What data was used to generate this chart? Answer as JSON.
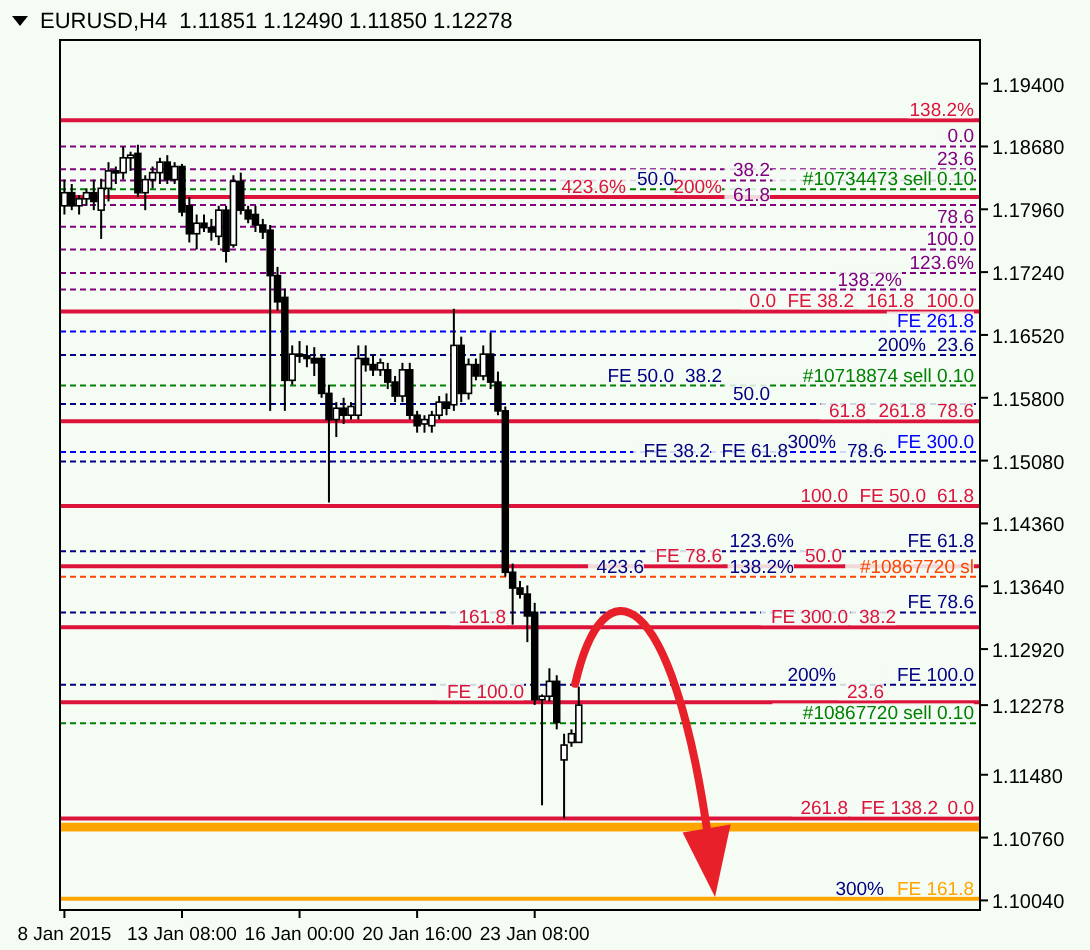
{
  "chart_data": {
    "type": "candlestick",
    "title": "EURUSD,H4  1.11851 1.12490 1.11850 1.12278",
    "categories": [
      "8 Jan 2015",
      null,
      null,
      null,
      null,
      null,
      null,
      null,
      null,
      null,
      null,
      null,
      null,
      null,
      null,
      null,
      "13 Jan 08:00",
      null,
      null,
      null,
      null,
      null,
      null,
      null,
      null,
      null,
      null,
      null,
      null,
      null,
      null,
      null,
      "16 Jan 00:00",
      null,
      null,
      null,
      null,
      null,
      null,
      null,
      null,
      null,
      null,
      null,
      null,
      null,
      null,
      null,
      "20 Jan 16:00",
      null,
      null,
      null,
      null,
      null,
      null,
      null,
      null,
      null,
      null,
      null,
      null,
      null,
      null,
      null,
      "23 Jan 08:00",
      null,
      null,
      null,
      null,
      null,
      null,
      null,
      null,
      null,
      null,
      null,
      null,
      null,
      null,
      null,
      null,
      null,
      null,
      null,
      null,
      null,
      null,
      null,
      null,
      null,
      null,
      null,
      null,
      null,
      null,
      null,
      null,
      null,
      null,
      null,
      null,
      null,
      null,
      null,
      null,
      null,
      null,
      null,
      null,
      null,
      null,
      null,
      null,
      null,
      null,
      null,
      null,
      null,
      null,
      null,
      null,
      null,
      null,
      null,
      null
    ],
    "ohlc": [
      [
        1.18,
        1.183,
        1.179,
        1.1815
      ],
      [
        1.1815,
        1.1825,
        1.1795,
        1.18
      ],
      [
        1.18,
        1.1812,
        1.179,
        1.1808
      ],
      [
        1.1808,
        1.182,
        1.18,
        1.1815
      ],
      [
        1.1815,
        1.183,
        1.1795,
        1.1805
      ],
      [
        1.1795,
        1.1831,
        1.1762,
        1.182
      ],
      [
        1.182,
        1.185,
        1.1805,
        1.184
      ],
      [
        1.184,
        1.1845,
        1.1825,
        1.1838
      ],
      [
        1.1838,
        1.1868,
        1.183,
        1.1855
      ],
      [
        1.1855,
        1.1862,
        1.184,
        1.1858
      ],
      [
        1.186,
        1.187,
        1.181,
        1.1815
      ],
      [
        1.1815,
        1.1835,
        1.1795,
        1.183
      ],
      [
        1.183,
        1.1845,
        1.182,
        1.1838
      ],
      [
        1.1838,
        1.1855,
        1.1825,
        1.185
      ],
      [
        1.185,
        1.1858,
        1.1825,
        1.183
      ],
      [
        1.183,
        1.185,
        1.1825,
        1.1845
      ],
      [
        1.1845,
        1.1848,
        1.1788,
        1.1793
      ],
      [
        1.18,
        1.181,
        1.1758,
        1.1768
      ],
      [
        1.1768,
        1.179,
        1.175,
        1.178
      ],
      [
        1.178,
        1.179,
        1.177,
        1.1775
      ],
      [
        1.1775,
        1.1785,
        1.176,
        1.177
      ],
      [
        1.1765,
        1.18,
        1.1755,
        1.1795
      ],
      [
        1.1795,
        1.18,
        1.1735,
        1.1748
      ],
      [
        1.1755,
        1.1835,
        1.1752,
        1.1828
      ],
      [
        1.1828,
        1.1838,
        1.179,
        1.1795
      ],
      [
        1.1795,
        1.18,
        1.178,
        1.1785
      ],
      [
        1.179,
        1.18,
        1.177,
        1.1778
      ],
      [
        1.1778,
        1.1785,
        1.1762,
        1.177
      ],
      [
        1.1772,
        1.1778,
        1.1565,
        1.172
      ],
      [
        1.172,
        1.173,
        1.168,
        1.169
      ],
      [
        1.1695,
        1.1705,
        1.1565,
        1.16
      ],
      [
        1.16,
        1.164,
        1.1595,
        1.163
      ],
      [
        1.163,
        1.1645,
        1.162,
        1.1628
      ],
      [
        1.1628,
        1.164,
        1.1615,
        1.1625
      ],
      [
        1.1625,
        1.1638,
        1.1605,
        1.162
      ],
      [
        1.1625,
        1.163,
        1.158,
        1.1585
      ],
      [
        1.1585,
        1.1595,
        1.146,
        1.1555
      ],
      [
        1.1555,
        1.1575,
        1.1535,
        1.1568
      ],
      [
        1.1568,
        1.158,
        1.155,
        1.156
      ],
      [
        1.156,
        1.1575,
        1.1555,
        1.157
      ],
      [
        1.156,
        1.164,
        1.1555,
        1.1625
      ],
      [
        1.1625,
        1.164,
        1.161,
        1.1618
      ],
      [
        1.1618,
        1.163,
        1.1605,
        1.1612
      ],
      [
        1.1612,
        1.1625,
        1.1605,
        1.162
      ],
      [
        1.1612,
        1.162,
        1.159,
        1.1598
      ],
      [
        1.1598,
        1.1605,
        1.1575,
        1.1582
      ],
      [
        1.1582,
        1.162,
        1.1575,
        1.1612
      ],
      [
        1.1612,
        1.162,
        1.1555,
        1.156
      ],
      [
        1.156,
        1.1565,
        1.154,
        1.1548
      ],
      [
        1.155,
        1.156,
        1.154,
        1.1555
      ],
      [
        1.1548,
        1.1565,
        1.154,
        1.156
      ],
      [
        1.156,
        1.1582,
        1.1555,
        1.1575
      ],
      [
        1.1575,
        1.1585,
        1.156,
        1.1568
      ],
      [
        1.1572,
        1.1682,
        1.1565,
        1.164
      ],
      [
        1.164,
        1.165,
        1.1575,
        1.1585
      ],
      [
        1.1585,
        1.1625,
        1.1578,
        1.1618
      ],
      [
        1.1618,
        1.1625,
        1.16,
        1.1605
      ],
      [
        1.1605,
        1.164,
        1.16,
        1.163
      ],
      [
        1.163,
        1.1655,
        1.159,
        1.1598
      ],
      [
        1.1598,
        1.161,
        1.156,
        1.1565
      ],
      [
        1.1565,
        1.157,
        1.1375,
        1.138
      ],
      [
        1.138,
        1.139,
        1.132,
        1.1362
      ],
      [
        1.1362,
        1.137,
        1.135,
        1.1355
      ],
      [
        1.1355,
        1.1365,
        1.13,
        1.133
      ],
      [
        1.1334,
        1.1345,
        1.1228,
        1.1234
      ],
      [
        1.1234,
        1.124,
        1.1113,
        1.1238
      ],
      [
        1.1238,
        1.127,
        1.1232,
        1.1255
      ],
      [
        1.1255,
        1.1262,
        1.12,
        1.1208
      ],
      [
        1.1165,
        1.1195,
        1.1098,
        1.1182
      ],
      [
        1.1185,
        1.12,
        1.118,
        1.1195
      ],
      [
        1.11851,
        1.1249,
        1.1185,
        1.12278
      ],
      null,
      null,
      null,
      null,
      null,
      null,
      null,
      null,
      null,
      null,
      null,
      null,
      null,
      null,
      null,
      null,
      null,
      null,
      null,
      null,
      null,
      null,
      null,
      null,
      null,
      null,
      null,
      null,
      null,
      null,
      null,
      null,
      null,
      null,
      null,
      null,
      null,
      null,
      null,
      null,
      null,
      null,
      null,
      null,
      null,
      null,
      null,
      null,
      null,
      null,
      null,
      null,
      null,
      null
    ],
    "ylim": [
      1.0993,
      1.199
    ],
    "yticks": [
      {
        "value": 1.194,
        "label": "1.19400"
      },
      {
        "value": 1.1868,
        "label": "1.18680"
      },
      {
        "value": 1.1796,
        "label": "1.17960"
      },
      {
        "value": 1.1724,
        "label": "1.17240"
      },
      {
        "value": 1.1652,
        "label": "1.16520"
      },
      {
        "value": 1.158,
        "label": "1.15800"
      },
      {
        "value": 1.1508,
        "label": "1.15080"
      },
      {
        "value": 1.1436,
        "label": "1.14360"
      },
      {
        "value": 1.1364,
        "label": "1.13640"
      },
      {
        "value": 1.1292,
        "label": "1.12920"
      },
      {
        "value": 1.12278,
        "label": "1.12278"
      },
      {
        "value": 1.1148,
        "label": "1.11480"
      },
      {
        "value": 1.1076,
        "label": "1.10760"
      },
      {
        "value": 1.1004,
        "label": "1.10040"
      }
    ],
    "bands": [
      {
        "axis": "y",
        "from": 1.1083,
        "to": 1.1093,
        "color": "#ffa500"
      }
    ],
    "ref_lines": [
      {
        "axis": "y",
        "value": 1.1898,
        "color": "#dc143c",
        "line_style": "solid"
      },
      {
        "axis": "y",
        "value": 1.1868,
        "color": "#800080",
        "line_style": "dashed"
      },
      {
        "axis": "y",
        "value": 1.1842,
        "color": "#800080",
        "line_style": "dashed"
      },
      {
        "axis": "y",
        "value": 1.1829,
        "color": "#800080",
        "line_style": "dashed"
      },
      {
        "axis": "y",
        "value": 1.1819,
        "label": "#10734473 sell 0.10",
        "color": "#008000",
        "line_style": "dashed"
      },
      {
        "axis": "y",
        "value": 1.181,
        "color": "#dc143c",
        "line_style": "solid"
      },
      {
        "axis": "y",
        "value": 1.1801,
        "color": "#800080",
        "line_style": "dashed"
      },
      {
        "axis": "y",
        "value": 1.1776,
        "color": "#800080",
        "line_style": "dashed"
      },
      {
        "axis": "y",
        "value": 1.175,
        "color": "#800080",
        "line_style": "dashed"
      },
      {
        "axis": "y",
        "value": 1.1723,
        "color": "#800080",
        "line_style": "dashed"
      },
      {
        "axis": "y",
        "value": 1.1704,
        "color": "#800080",
        "line_style": "dashed"
      },
      {
        "axis": "y",
        "value": 1.1679,
        "color": "#dc143c",
        "line_style": "solid"
      },
      {
        "axis": "y",
        "value": 1.1656,
        "label": "FE 261.8",
        "color": "#0000ff",
        "line_style": "dashed"
      },
      {
        "axis": "y",
        "value": 1.1629,
        "color": "#000080",
        "line_style": "dashed"
      },
      {
        "axis": "y",
        "value": 1.1594,
        "label": "#10718874 sell 0.10",
        "color": "#008000",
        "line_style": "dashed"
      },
      {
        "axis": "y",
        "value": 1.1573,
        "color": "#000080",
        "line_style": "dashed"
      },
      {
        "axis": "y",
        "value": 1.1553,
        "color": "#dc143c",
        "line_style": "solid"
      },
      {
        "axis": "y",
        "value": 1.1518,
        "label": "FE 300.0",
        "color": "#0000ff",
        "line_style": "dashed"
      },
      {
        "axis": "y",
        "value": 1.1507,
        "color": "#000080",
        "line_style": "dashed"
      },
      {
        "axis": "y",
        "value": 1.1456,
        "color": "#dc143c",
        "line_style": "solid"
      },
      {
        "axis": "y",
        "value": 1.1404,
        "label": "FE 61.8",
        "color": "#000080",
        "line_style": "dashed"
      },
      {
        "axis": "y",
        "value": 1.1387,
        "color": "#dc143c",
        "line_style": "solid"
      },
      {
        "axis": "y",
        "value": 1.1375,
        "label": "#10867720 sl",
        "color": "#ff4500",
        "line_style": "dashed"
      },
      {
        "axis": "y",
        "value": 1.1334,
        "label": "FE 78.6",
        "color": "#000080",
        "line_style": "dashed"
      },
      {
        "axis": "y",
        "value": 1.1317,
        "color": "#dc143c",
        "line_style": "solid"
      },
      {
        "axis": "y",
        "value": 1.1251,
        "label": "FE 100.0",
        "color": "#000080",
        "line_style": "dashed"
      },
      {
        "axis": "y",
        "value": 1.1231,
        "color": "#dc143c",
        "line_style": "solid"
      },
      {
        "axis": "y",
        "value": 1.1207,
        "label": "#10867720 sell 0.10",
        "color": "#008000",
        "line_style": "dashed"
      },
      {
        "axis": "y",
        "value": 1.1098,
        "color": "#dc143c",
        "line_style": "solid"
      },
      {
        "axis": "y",
        "value": 1.1006,
        "label": "FE 161.8",
        "color": "#ffa500",
        "line_style": "solid"
      }
    ],
    "annotations": [
      {
        "text": "138.2%",
        "y": 1.1898
      },
      {
        "text": "0.0",
        "y": 1.1868
      },
      {
        "text": "23.6",
        "y": 1.1842
      },
      {
        "text": "38.2",
        "y": 1.1829
      },
      {
        "text": "200%",
        "y": 1.181
      },
      {
        "text": "61.8",
        "y": 1.1801
      },
      {
        "text": "78.6",
        "y": 1.1776
      },
      {
        "text": "100.0",
        "y": 1.175
      },
      {
        "text": "123.6%",
        "y": 1.1723
      },
      {
        "text": "138.2%",
        "y": 1.1704
      },
      {
        "text": "100.0",
        "y": 1.1679
      },
      {
        "text": "23.6",
        "y": 1.1629
      },
      {
        "text": "50.0",
        "y": 1.1573
      },
      {
        "text": "78.6",
        "y": 1.1553
      },
      {
        "text": "78.6",
        "y": 1.1507
      },
      {
        "text": "61.8",
        "y": 1.1456
      },
      {
        "text": "50.0",
        "y": 1.1387
      },
      {
        "text": "38.2",
        "y": 1.1317
      },
      {
        "text": "23.6",
        "y": 1.1231
      },
      {
        "text": "0.0",
        "y": 1.1098
      },
      {
        "text": "50.0",
        "y": 1.1819
      },
      {
        "text": "423.6%",
        "y": 1.181
      },
      {
        "text": "161.8",
        "y": 1.1679
      },
      {
        "text": "FE 38.2",
        "y": 1.1679
      },
      {
        "text": "0.0",
        "y": 1.1679
      },
      {
        "text": "200%",
        "y": 1.1629
      },
      {
        "text": "38.2",
        "y": 1.1594
      },
      {
        "text": "FE 50.0",
        "y": 1.1594
      },
      {
        "text": "261.8",
        "y": 1.1553
      },
      {
        "text": "61.8",
        "y": 1.1553
      },
      {
        "text": "300%",
        "y": 1.1518
      },
      {
        "text": "FE 61.8",
        "y": 1.1507
      },
      {
        "text": "FE 38.2",
        "y": 1.1507
      },
      {
        "text": "FE 50.0",
        "y": 1.1456
      },
      {
        "text": "100.0",
        "y": 1.1456
      },
      {
        "text": "123.6%",
        "y": 1.1404
      },
      {
        "text": "FE 78.6",
        "y": 1.1387
      },
      {
        "text": "138.2%",
        "y": 1.1375
      },
      {
        "text": "423.6",
        "y": 1.1375
      },
      {
        "text": "FE 300.0",
        "y": 1.1317
      },
      {
        "text": "161.8",
        "y": 1.1317
      },
      {
        "text": "200%",
        "y": 1.1251
      },
      {
        "text": "FE 100.0",
        "y": 1.1231
      },
      {
        "text": "FE 138.2",
        "y": 1.1098
      },
      {
        "text": "261.8",
        "y": 1.1098
      },
      {
        "text": "300%",
        "y": 1.1006
      }
    ]
  }
}
